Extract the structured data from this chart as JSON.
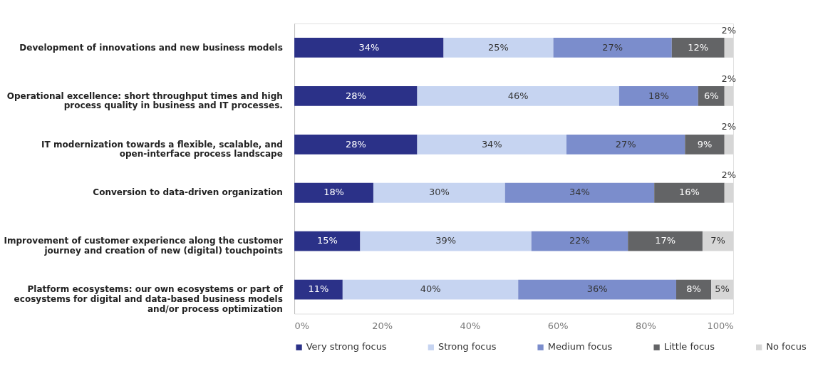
{
  "chart_data": {
    "type": "bar",
    "orientation": "horizontal",
    "stacked": true,
    "legend": "bottom",
    "grid": false,
    "categories": [
      "Development of innovations and new business models",
      "Operational excellence: short throughput times and high process quality in business and IT processes.",
      "IT modernization towards a flexible, scalable, and open-interface process landscape",
      "Conversion to data-driven organization",
      "Improvement of customer experience along the customer journey and creation of new (digital) touchpoints",
      "Platform ecosystems: our own ecosystems or part of ecosystems for digital and data-based business models and/or process optimization"
    ],
    "xlim": [
      0,
      100
    ],
    "xticks": [
      {
        "value": 0,
        "label": "0%"
      },
      {
        "value": 20,
        "label": "20%"
      },
      {
        "value": 40,
        "label": "40%"
      },
      {
        "value": 60,
        "label": "60%"
      },
      {
        "value": 80,
        "label": "80%"
      },
      {
        "value": 100,
        "label": "100%"
      }
    ],
    "series": [
      {
        "name": "Very strong focus",
        "color": "#2b3188",
        "values": [
          34,
          28,
          28,
          18,
          15,
          11
        ],
        "value_labels": [
          "34%",
          "28%",
          "28%",
          "18%",
          "15%",
          "11%"
        ]
      },
      {
        "name": "Strong focus",
        "color": "#c6d4f1",
        "values": [
          25,
          46,
          34,
          30,
          39,
          40
        ],
        "value_labels": [
          "25%",
          "46%",
          "34%",
          "30%",
          "39%",
          "40%"
        ]
      },
      {
        "name": "Medium focus",
        "color": "#7b8dcc",
        "values": [
          27,
          18,
          27,
          34,
          22,
          36
        ],
        "value_labels": [
          "27%",
          "18%",
          "27%",
          "34%",
          "22%",
          "36%"
        ]
      },
      {
        "name": "Little focus",
        "color": "#636466",
        "values": [
          12,
          6,
          9,
          16,
          17,
          8
        ],
        "value_labels": [
          "12%",
          "6%",
          "9%",
          "16%",
          "17%",
          "8%"
        ]
      },
      {
        "name": "No focus",
        "color": "#d6d6d6",
        "values": [
          2,
          2,
          2,
          2,
          7,
          5
        ],
        "value_labels": [
          "2%",
          "2%",
          "2%",
          "2%",
          "7%",
          "5%"
        ]
      }
    ]
  }
}
